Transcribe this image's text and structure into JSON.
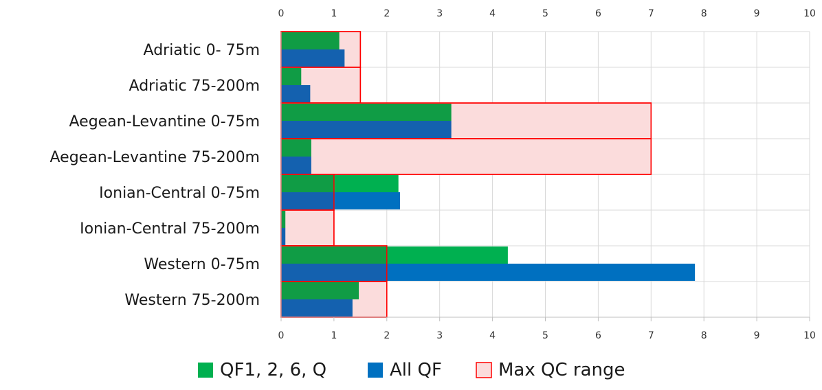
{
  "chart_data": {
    "type": "bar",
    "orientation": "horizontal",
    "categories": [
      "Adriatic 0- 75m",
      "Adriatic 75-200m",
      "Aegean-Levantine 0-75m",
      "Aegean-Levantine 75-200m",
      "Ionian-Central 0-75m",
      "Ionian-Central 75-200m",
      "Western 0-75m",
      "Western 75-200m"
    ],
    "series": [
      {
        "name": "QF1, 2, 6, Q",
        "color": "#00b050",
        "values": [
          1.1,
          0.38,
          3.22,
          0.57,
          2.22,
          0.08,
          4.29,
          1.47
        ]
      },
      {
        "name": "All QF",
        "color": "#0070c0",
        "values": [
          1.2,
          0.55,
          3.22,
          0.57,
          2.25,
          0.08,
          7.83,
          1.35
        ]
      },
      {
        "name": "Max QC range",
        "color": "#fbdcdc",
        "border": "#ff0000",
        "values": [
          1.5,
          1.5,
          7,
          7,
          1,
          1,
          2,
          2
        ]
      }
    ],
    "xlim": [
      0,
      10
    ],
    "ticks": [
      "0",
      "1",
      "2",
      "3",
      "4",
      "5",
      "6",
      "7",
      "8",
      "9",
      "10"
    ],
    "tick_positions": [
      "top",
      "bottom"
    ],
    "grid": true,
    "legend_position": "bottom"
  }
}
